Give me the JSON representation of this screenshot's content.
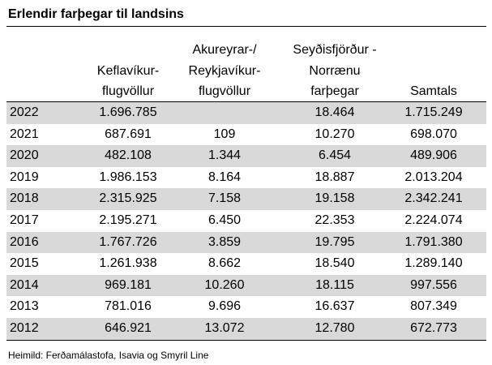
{
  "title": "Erlendir farþegar til landsins",
  "table": {
    "header": [
      [
        "Keflavíkur-",
        "flugvöllur"
      ],
      [
        "Akureyrar-/",
        "Reykjavíkur-",
        "flugvöllur"
      ],
      [
        "Seyðisfjörður -",
        "Norrænu",
        "farþegar"
      ],
      [
        "Samtals"
      ]
    ],
    "rows": [
      [
        "2022",
        "1.696.785",
        null,
        "18.464",
        "1.715.249"
      ],
      [
        "2021",
        "687.691",
        "109",
        "10.270",
        "698.070"
      ],
      [
        "2020",
        "482.108",
        "1.344",
        "6.454",
        "489.906"
      ],
      [
        "2019",
        "1.986.153",
        "8.164",
        "18.887",
        "2.013.204"
      ],
      [
        "2018",
        "2.315.925",
        "7.158",
        "19.158",
        "2.342.241"
      ],
      [
        "2017",
        "2.195.271",
        "6.450",
        "22.353",
        "2.224.074"
      ],
      [
        "2016",
        "1.767.726",
        "3.859",
        "19.795",
        "1.791.380"
      ],
      [
        "2015",
        "1.261.938",
        "8.662",
        "18.540",
        "1.289.140"
      ],
      [
        "2014",
        "969.181",
        "10.260",
        "18.115",
        "997.556"
      ],
      [
        "2013",
        "781.016",
        "9.696",
        "16.637",
        "807.349"
      ],
      [
        "2012",
        "646.921",
        "13.072",
        "12.780",
        "672.773"
      ]
    ]
  },
  "source": "Heimild: Ferðamálastofa, Isavia og Smyril Line"
}
